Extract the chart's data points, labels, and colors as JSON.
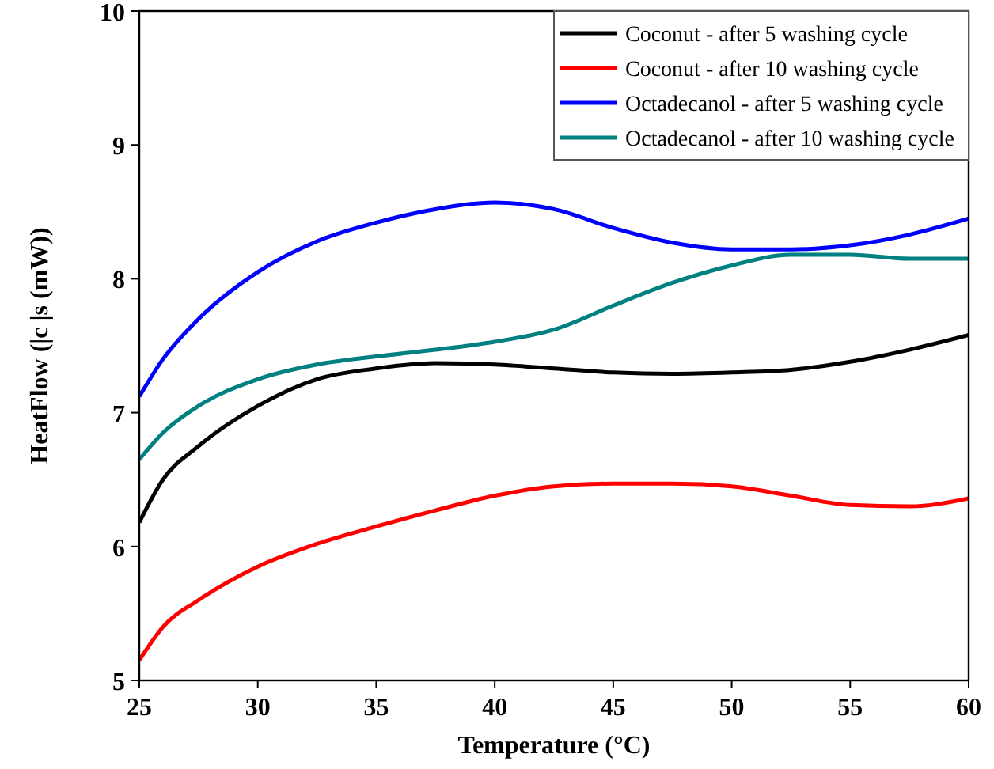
{
  "chart_data": {
    "type": "line",
    "xlabel": "Temperature (°C)",
    "ylabel": "HeatFlow (|c |s (mW))",
    "x": [
      25,
      26,
      27.5,
      30,
      32.5,
      35,
      37.5,
      40,
      42.5,
      45,
      47.5,
      50,
      52.5,
      55,
      57.5,
      60
    ],
    "series": [
      {
        "name": "Coconut - after 5 washing cycle",
        "color": "#000000",
        "values": [
          6.18,
          6.5,
          6.75,
          7.05,
          7.25,
          7.33,
          7.37,
          7.36,
          7.33,
          7.3,
          7.29,
          7.3,
          7.32,
          7.38,
          7.47,
          7.58
        ]
      },
      {
        "name": "Coconut - after 10 washing cycle",
        "color": "#ff0000",
        "values": [
          5.15,
          5.4,
          5.6,
          5.85,
          6.02,
          6.15,
          6.27,
          6.38,
          6.45,
          6.47,
          6.47,
          6.45,
          6.38,
          6.31,
          6.3,
          6.36
        ]
      },
      {
        "name": "Octadecanol - after 5 washing cycle",
        "color": "#0000ff",
        "values": [
          7.12,
          7.4,
          7.7,
          8.05,
          8.28,
          8.42,
          8.52,
          8.57,
          8.52,
          8.38,
          8.27,
          8.22,
          8.22,
          8.25,
          8.33,
          8.45
        ]
      },
      {
        "name": "Octadecanol - after 10 washing cycle",
        "color": "#008080",
        "values": [
          6.65,
          6.85,
          7.05,
          7.25,
          7.36,
          7.42,
          7.47,
          7.53,
          7.62,
          7.8,
          7.97,
          8.1,
          8.18,
          8.18,
          8.15,
          8.15
        ]
      }
    ],
    "xlim": [
      25,
      60
    ],
    "xticks": [
      25,
      30,
      35,
      40,
      45,
      50,
      55,
      60
    ],
    "ylim": [
      5,
      10
    ],
    "yticks": [
      5,
      6,
      7,
      8,
      9,
      10
    ],
    "grid": false,
    "legend": "top right",
    "line_style": "solid"
  }
}
